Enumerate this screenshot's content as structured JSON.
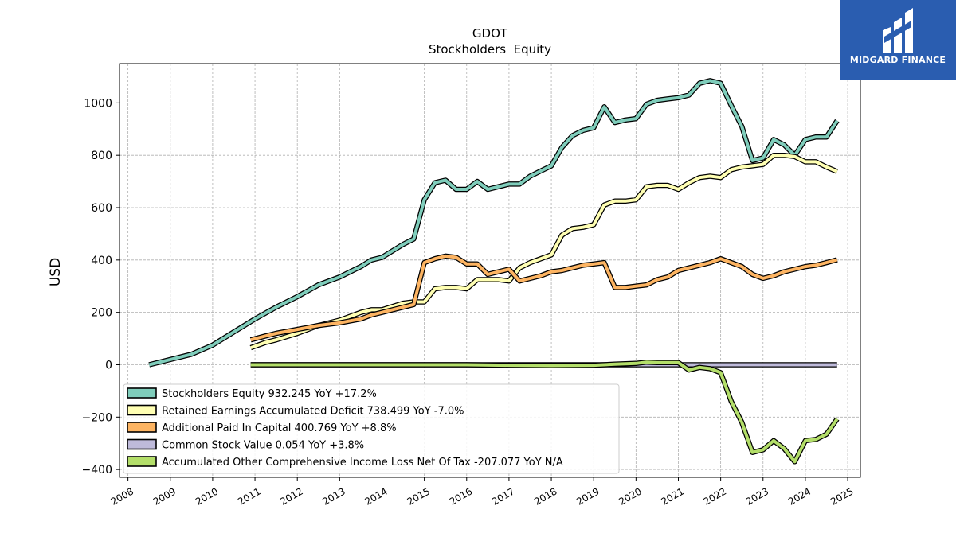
{
  "logo": {
    "text": "MIDGARD FINANCE",
    "background": "#2a5db0"
  },
  "chart_data": {
    "type": "line",
    "title": "GDOT",
    "subtitle": "Stockholders  Equity",
    "xlabel": "",
    "ylabel": "USD",
    "xlim": [
      2007.8,
      2025.3
    ],
    "ylim": [
      -430,
      1150
    ],
    "x_ticks": [
      "2008",
      "2009",
      "2010",
      "2011",
      "2012",
      "2013",
      "2014",
      "2015",
      "2016",
      "2017",
      "2018",
      "2019",
      "2020",
      "2021",
      "2022",
      "2023",
      "2024",
      "2025"
    ],
    "y_ticks": [
      -400,
      -200,
      0,
      200,
      400,
      600,
      800,
      1000
    ],
    "y_tick_labels": [
      "−400",
      "−200",
      "0",
      "200",
      "400",
      "600",
      "800",
      "1000"
    ],
    "grid": true,
    "legend_position": "lower-left",
    "series": [
      {
        "name": "Stockholders Equity",
        "legend": "Stockholders Equity  932.245 YoY +17.2%",
        "color": "#7fcdbb",
        "x": [
          2008.5,
          2009.0,
          2009.5,
          2010.0,
          2010.5,
          2011.0,
          2011.5,
          2012.0,
          2012.5,
          2013.0,
          2013.5,
          2013.75,
          2014.0,
          2014.5,
          2014.75,
          2015.0,
          2015.25,
          2015.5,
          2015.75,
          2016.0,
          2016.25,
          2016.5,
          2016.75,
          2017.0,
          2017.25,
          2017.5,
          2017.75,
          2018.0,
          2018.25,
          2018.5,
          2018.75,
          2019.0,
          2019.25,
          2019.5,
          2019.75,
          2020.0,
          2020.25,
          2020.5,
          2020.75,
          2021.0,
          2021.25,
          2021.5,
          2021.75,
          2022.0,
          2022.25,
          2022.5,
          2022.75,
          2023.0,
          2023.25,
          2023.5,
          2023.75,
          2024.0,
          2024.25,
          2024.5,
          2024.75
        ],
        "y": [
          0,
          20,
          40,
          75,
          125,
          175,
          220,
          260,
          305,
          335,
          375,
          400,
          410,
          460,
          480,
          630,
          695,
          705,
          670,
          670,
          700,
          670,
          680,
          690,
          690,
          720,
          740,
          760,
          830,
          875,
          895,
          905,
          985,
          925,
          935,
          940,
          995,
          1010,
          1015,
          1020,
          1030,
          1075,
          1085,
          1075,
          990,
          910,
          780,
          790,
          860,
          840,
          800,
          860,
          870,
          870,
          932
        ]
      },
      {
        "name": "Retained Earnings Accumulated Deficit",
        "legend": "Retained Earnings Accumulated Deficit  738.499 YoY -7.0%",
        "color": "#ffffb3",
        "x": [
          2010.9,
          2011.25,
          2011.5,
          2012.0,
          2012.5,
          2013.0,
          2013.5,
          2013.75,
          2014.0,
          2014.5,
          2014.75,
          2015.0,
          2015.25,
          2015.5,
          2015.75,
          2016.0,
          2016.25,
          2016.5,
          2016.75,
          2017.0,
          2017.25,
          2017.5,
          2017.75,
          2018.0,
          2018.25,
          2018.5,
          2018.75,
          2019.0,
          2019.25,
          2019.5,
          2019.75,
          2020.0,
          2020.25,
          2020.5,
          2020.75,
          2021.0,
          2021.25,
          2021.5,
          2021.75,
          2022.0,
          2022.25,
          2022.5,
          2022.75,
          2023.0,
          2023.25,
          2023.5,
          2023.75,
          2024.0,
          2024.25,
          2024.5,
          2024.75
        ],
        "y": [
          65,
          85,
          95,
          120,
          150,
          170,
          200,
          210,
          210,
          235,
          240,
          240,
          290,
          295,
          295,
          290,
          325,
          325,
          325,
          320,
          370,
          390,
          405,
          420,
          495,
          520,
          525,
          535,
          610,
          625,
          625,
          630,
          680,
          685,
          685,
          670,
          695,
          715,
          720,
          715,
          745,
          755,
          760,
          765,
          800,
          800,
          795,
          775,
          775,
          755,
          738
        ]
      },
      {
        "name": "Additional Paid In Capital",
        "legend": "Additional Paid In Capital  400.769 YoY +8.8%",
        "color": "#fdb462",
        "x": [
          2010.9,
          2011.25,
          2011.5,
          2012.0,
          2012.5,
          2013.0,
          2013.5,
          2013.75,
          2014.0,
          2014.5,
          2014.75,
          2015.0,
          2015.25,
          2015.5,
          2015.75,
          2016.0,
          2016.25,
          2016.5,
          2016.75,
          2017.0,
          2017.25,
          2017.5,
          2017.75,
          2018.0,
          2018.25,
          2018.5,
          2018.75,
          2019.0,
          2019.25,
          2019.5,
          2019.75,
          2020.0,
          2020.25,
          2020.5,
          2020.75,
          2021.0,
          2021.25,
          2021.5,
          2021.75,
          2022.0,
          2022.5,
          2022.75,
          2023.0,
          2023.25,
          2023.5,
          2023.75,
          2024.0,
          2024.25,
          2024.5,
          2024.75
        ],
        "y": [
          95,
          110,
          120,
          135,
          150,
          160,
          175,
          190,
          200,
          220,
          230,
          390,
          405,
          415,
          410,
          385,
          385,
          345,
          355,
          365,
          320,
          330,
          340,
          355,
          360,
          370,
          380,
          385,
          390,
          295,
          295,
          300,
          305,
          325,
          335,
          360,
          370,
          380,
          390,
          405,
          375,
          345,
          330,
          340,
          355,
          365,
          375,
          380,
          390,
          401
        ]
      },
      {
        "name": "Common Stock Value",
        "legend": "Common Stock Value  0.054 YoY +3.8%",
        "color": "#bebada",
        "x": [
          2010.9,
          2024.75
        ],
        "y": [
          0,
          0
        ]
      },
      {
        "name": "Accumulated Other Comprehensive Income Loss Net Of Tax",
        "legend": "Accumulated Other Comprehensive Income Loss Net Of Tax  -207.077 YoY N/A",
        "color": "#b3de69",
        "x": [
          2010.9,
          2012.0,
          2014.0,
          2016.0,
          2017.0,
          2018.0,
          2019.0,
          2019.5,
          2020.0,
          2020.25,
          2020.5,
          2021.0,
          2021.25,
          2021.5,
          2021.75,
          2022.0,
          2022.25,
          2022.5,
          2022.75,
          2023.0,
          2023.25,
          2023.5,
          2023.75,
          2024.0,
          2024.25,
          2024.5,
          2024.75
        ],
        "y": [
          0,
          0,
          0,
          0,
          -2,
          -3,
          -2,
          2,
          5,
          10,
          8,
          8,
          -20,
          -10,
          -15,
          -30,
          -140,
          -220,
          -335,
          -325,
          -290,
          -320,
          -370,
          -290,
          -285,
          -265,
          -207
        ]
      }
    ]
  }
}
